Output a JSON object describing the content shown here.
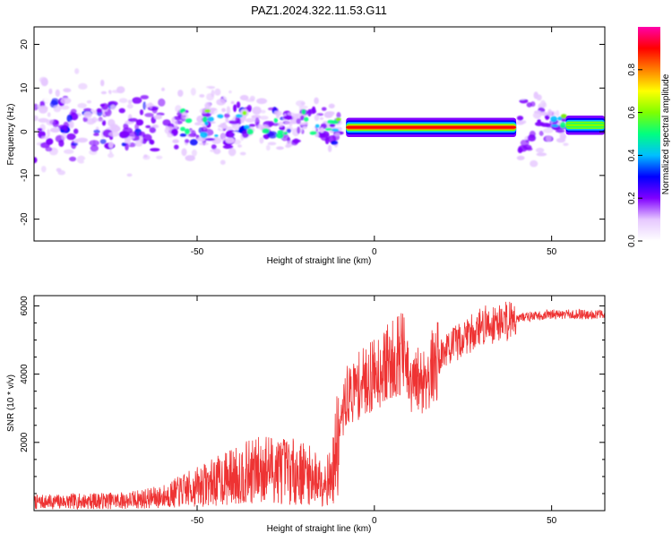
{
  "title": "PAZ1.2024.322.11.53.G11",
  "chart_data": [
    {
      "type": "heatmap",
      "xlabel": "Height of straight line (km)",
      "ylabel": "Frequency (Hz)",
      "xlim": [
        -96,
        65
      ],
      "ylim": [
        -25,
        24
      ],
      "x_ticks": [
        -50,
        0,
        50
      ],
      "y_ticks": [
        -20,
        -10,
        0,
        10,
        20
      ],
      "colorbar": {
        "label": "Normalized spectral amplitude",
        "ticks": [
          "0.0",
          "0.2",
          "0.4",
          "0.6",
          "0.8"
        ],
        "range": [
          0,
          1
        ],
        "colors": [
          "#ffffff",
          "#e6c8ff",
          "#8000ff",
          "#0000ff",
          "#00bfff",
          "#00ff80",
          "#7fff00",
          "#ffff00",
          "#ff8000",
          "#ff0000",
          "#ff00aa"
        ]
      },
      "regions": [
        {
          "name": "scattered-noise",
          "x": [
            -96,
            -10
          ],
          "freq_center": [
            0,
            2
          ],
          "freq_spread": 10,
          "amplitude": 0.2
        },
        {
          "name": "strong-tone",
          "x": [
            -8,
            40
          ],
          "freq": 1,
          "amplitude": 0.9
        },
        {
          "name": "scattered-noise-right",
          "x": [
            41,
            54
          ],
          "freq_center": [
            0,
            2
          ],
          "freq_spread": 8,
          "amplitude": 0.2
        },
        {
          "name": "tone-right",
          "x": [
            54,
            65
          ],
          "freq": 1.5,
          "amplitude": 0.55
        }
      ]
    },
    {
      "type": "line",
      "xlabel": "Height of straight line (km)",
      "ylabel": "SNR (10 * v/v)",
      "xlim": [
        -96,
        65
      ],
      "ylim": [
        0,
        6300
      ],
      "x_ticks": [
        -50,
        0,
        50
      ],
      "y_ticks": [
        2000,
        4000,
        6000
      ],
      "color": "#ee3333",
      "envelope": {
        "x": [
          -96,
          -80,
          -70,
          -60,
          -50,
          -40,
          -30,
          -20,
          -15,
          -12,
          -10,
          -8,
          -5,
          0,
          5,
          8,
          10,
          15,
          20,
          30,
          40,
          50,
          60,
          65
        ],
        "y": [
          250,
          280,
          300,
          400,
          700,
          1000,
          1250,
          1100,
          900,
          950,
          2200,
          3300,
          3600,
          4000,
          4400,
          4700,
          3600,
          4000,
          4700,
          5400,
          5650,
          5750,
          5750,
          5750
        ]
      }
    }
  ]
}
